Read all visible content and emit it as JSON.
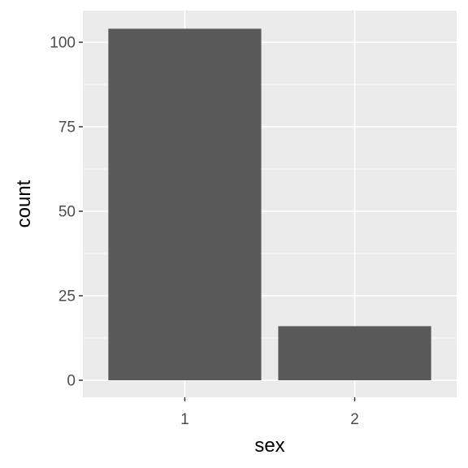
{
  "chart_data": {
    "type": "bar",
    "categories": [
      "1",
      "2"
    ],
    "values": [
      104,
      16
    ],
    "title": "",
    "xlabel": "sex",
    "ylabel": "count",
    "ylim": [
      0,
      109.2
    ],
    "yticks": [
      0,
      25,
      50,
      75,
      100
    ],
    "grid": true,
    "legend": "none",
    "colors": {
      "panel": "#ebebeb",
      "grid": "#ffffff",
      "bar": "#595959",
      "tick_text": "#4d4d4d",
      "tick_mark": "#333333",
      "axis_title": "#000000"
    }
  }
}
